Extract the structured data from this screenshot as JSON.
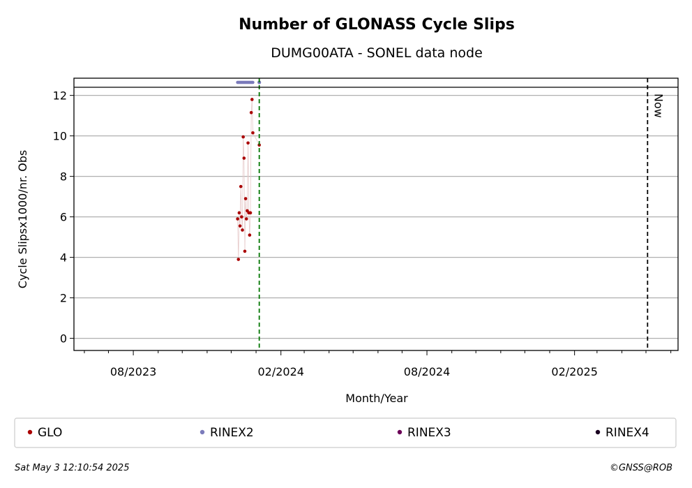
{
  "chart_data": {
    "type": "scatter",
    "title": "Number of GLONASS Cycle Slips",
    "subtitle": "DUMG00ATA - SONEL data node",
    "xlabel": "Month/Year",
    "ylabel": "Cycle Slipsx1000/nr. Obs",
    "xlim": [
      "2023-05-19",
      "2025-06-10"
    ],
    "ylim": [
      -0.6,
      12.85
    ],
    "yticks": [
      0,
      2,
      4,
      6,
      8,
      10,
      12
    ],
    "xticks": [
      {
        "date": "2023-08-01",
        "label": "08/2023"
      },
      {
        "date": "2024-02-01",
        "label": "02/2024"
      },
      {
        "date": "2024-08-01",
        "label": "08/2024"
      },
      {
        "date": "2025-02-01",
        "label": "02/2025"
      }
    ],
    "minor_xticks": [
      "2023-06-01",
      "2023-07-01",
      "2023-09-01",
      "2023-10-01",
      "2023-11-01",
      "2023-12-01",
      "2024-01-01",
      "2024-03-01",
      "2024-04-01",
      "2024-05-01",
      "2024-06-01",
      "2024-07-01",
      "2024-09-01",
      "2024-10-01",
      "2024-11-01",
      "2024-12-01",
      "2025-01-01",
      "2025-03-01",
      "2025-04-01",
      "2025-05-01",
      "2025-06-01"
    ],
    "grid": "y",
    "series": [
      {
        "name": "GLO",
        "color": "#aa0000",
        "points": [
          {
            "x": "2023-12-09",
            "y": 5.9
          },
          {
            "x": "2023-12-10",
            "y": 3.9
          },
          {
            "x": "2023-12-11",
            "y": 6.2
          },
          {
            "x": "2023-12-12",
            "y": 5.55
          },
          {
            "x": "2023-12-13",
            "y": 7.5
          },
          {
            "x": "2023-12-14",
            "y": 6.0
          },
          {
            "x": "2023-12-15",
            "y": 5.35
          },
          {
            "x": "2023-12-16",
            "y": 9.95
          },
          {
            "x": "2023-12-17",
            "y": 8.9
          },
          {
            "x": "2023-12-18",
            "y": 4.3
          },
          {
            "x": "2023-12-19",
            "y": 6.9
          },
          {
            "x": "2023-12-20",
            "y": 5.9
          },
          {
            "x": "2023-12-21",
            "y": 6.3
          },
          {
            "x": "2023-12-22",
            "y": 9.65
          },
          {
            "x": "2023-12-23",
            "y": 6.2
          },
          {
            "x": "2023-12-24",
            "y": 5.1
          },
          {
            "x": "2023-12-25",
            "y": 6.2
          },
          {
            "x": "2023-12-26",
            "y": 11.15
          },
          {
            "x": "2023-12-27",
            "y": 11.8
          },
          {
            "x": "2023-12-28",
            "y": 10.15
          },
          {
            "x": "2024-01-05",
            "y": 9.55
          }
        ]
      },
      {
        "name": "RINEX2",
        "color": "#7b7bbb",
        "availability": [
          "2023-12-09",
          "2023-12-28"
        ],
        "point": "2024-01-05"
      },
      {
        "name": "RINEX3",
        "color": "#6b0057"
      },
      {
        "name": "RINEX4",
        "color": "#1a0020"
      }
    ],
    "vlines": [
      {
        "x": "2024-01-05",
        "color": "#007700",
        "style": "dashed"
      },
      {
        "x": "2025-05-03",
        "color": "#000000",
        "style": "dashed",
        "label": "Now"
      }
    ],
    "legend_position": "bottom"
  },
  "footer": {
    "timestamp": "Sat May  3 12:10:54 2025",
    "copyright": "©GNSS@ROB"
  }
}
